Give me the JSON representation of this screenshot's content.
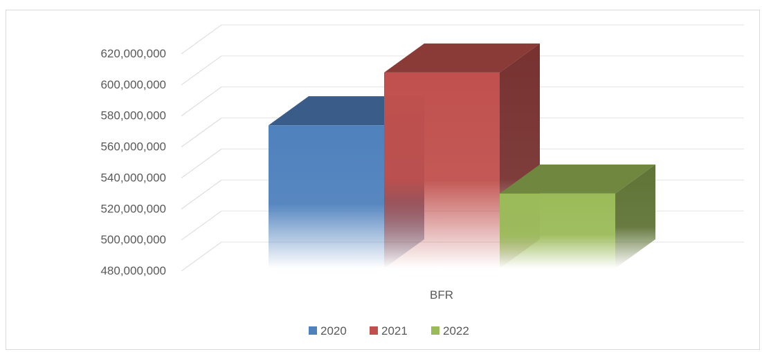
{
  "chart_data": {
    "type": "bar",
    "title": "",
    "xlabel": "",
    "ylabel": "",
    "categories": [
      "BFR"
    ],
    "series": [
      {
        "name": "2020",
        "values": [
          574000000
        ],
        "color": "#4f81bd"
      },
      {
        "name": "2021",
        "values": [
          608000000
        ],
        "color": "#c0504d"
      },
      {
        "name": "2022",
        "values": [
          530000000
        ],
        "color": "#9bbb59"
      }
    ],
    "ylim": [
      480000000,
      620000000
    ],
    "yticks": [
      {
        "value": 480000000,
        "label": "480,000,000"
      },
      {
        "value": 500000000,
        "label": "500,000,000"
      },
      {
        "value": 520000000,
        "label": "520,000,000"
      },
      {
        "value": 540000000,
        "label": "540,000,000"
      },
      {
        "value": 560000000,
        "label": "560,000,000"
      },
      {
        "value": 580000000,
        "label": "580,000,000"
      },
      {
        "value": 600000000,
        "label": "600,000,000"
      },
      {
        "value": 620000000,
        "label": "620,000,000"
      }
    ],
    "grid": true,
    "projection": "3d",
    "legend_position": "bottom"
  }
}
